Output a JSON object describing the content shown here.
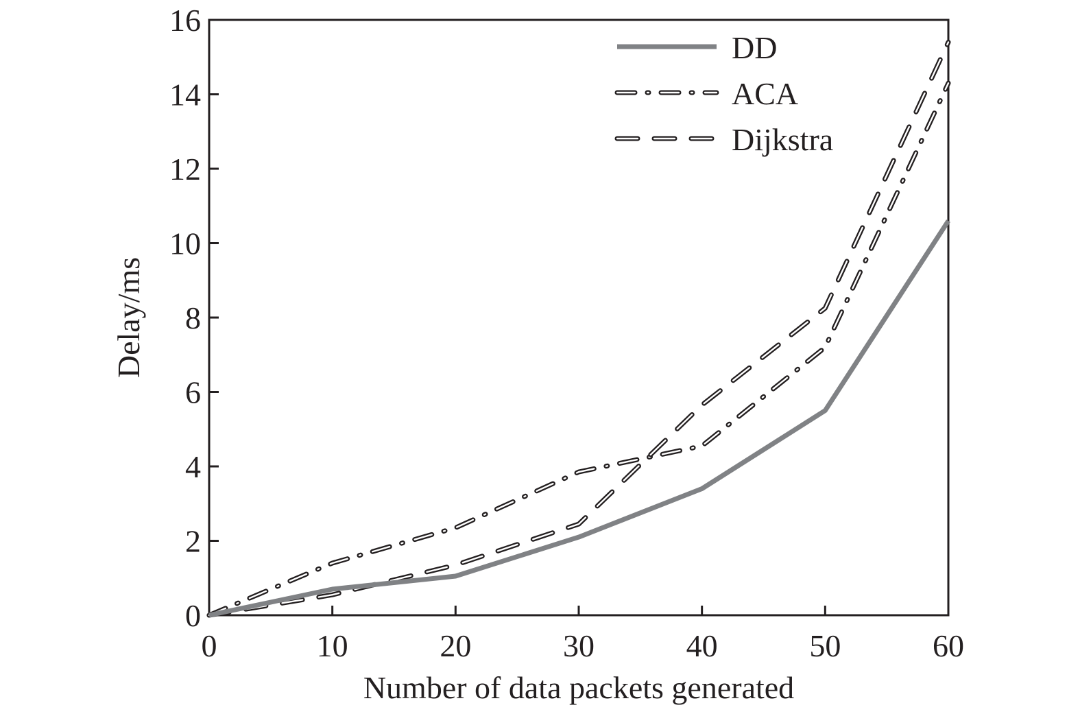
{
  "chart_data": {
    "type": "line",
    "xlabel": "Number of data packets generated",
    "ylabel": "Delay/ms",
    "xlim": [
      0,
      60
    ],
    "ylim": [
      0,
      16
    ],
    "xticks": [
      0,
      10,
      20,
      30,
      40,
      50,
      60
    ],
    "yticks": [
      0,
      2,
      4,
      6,
      8,
      10,
      12,
      14,
      16
    ],
    "grid": false,
    "legend_position": "top-right",
    "x": [
      0,
      10,
      20,
      30,
      40,
      50,
      60
    ],
    "series": [
      {
        "name": "DD",
        "style": "solid",
        "color": "#808285",
        "values": [
          0,
          0.7,
          1.05,
          2.1,
          3.4,
          5.5,
          10.6
        ]
      },
      {
        "name": "ACA",
        "style": "dash-dot",
        "color": "#231f20",
        "values": [
          0,
          1.4,
          2.35,
          3.85,
          4.55,
          7.2,
          14.3
        ]
      },
      {
        "name": "Dijkstra",
        "style": "dashed",
        "color": "#231f20",
        "values": [
          0,
          0.55,
          1.35,
          2.45,
          5.65,
          8.25,
          15.4
        ]
      }
    ]
  }
}
